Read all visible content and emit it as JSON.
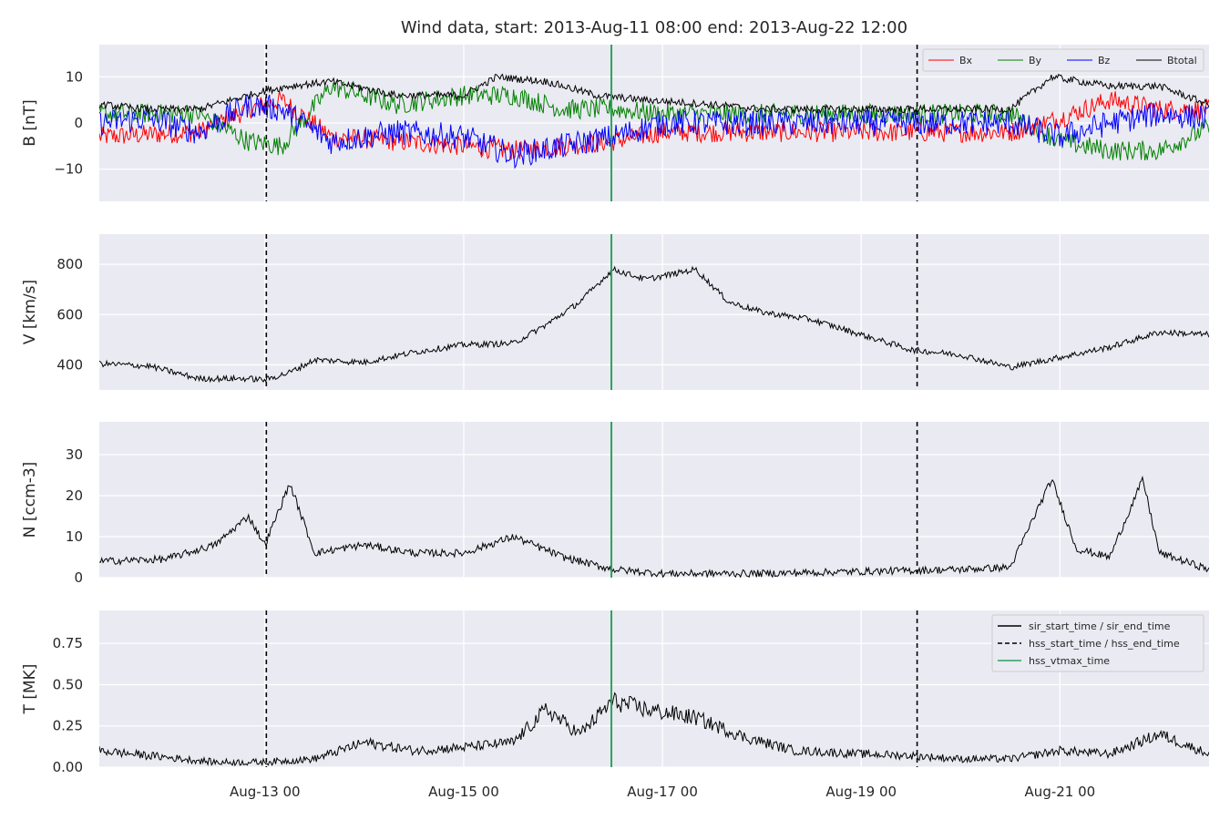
{
  "figure": {
    "title": "Wind data, start: 2013-Aug-11 08:00  end: 2013-Aug-22 12:00",
    "xlim": [
      "2013-08-11T08:00",
      "2013-08-22T12:00"
    ],
    "x_ticks": [
      {
        "t": "2013-08-13T00:00",
        "label": "Aug-13 00"
      },
      {
        "t": "2013-08-15T00:00",
        "label": "Aug-15 00"
      },
      {
        "t": "2013-08-17T00:00",
        "label": "Aug-17 00"
      },
      {
        "t": "2013-08-19T00:00",
        "label": "Aug-19 00"
      },
      {
        "t": "2013-08-21T00:00",
        "label": "Aug-21 00"
      }
    ],
    "event_lines": [
      {
        "time": "2013-08-13T00:20",
        "kind": "hss_start_time / hss_end_time",
        "style": "dashed",
        "color": "#000000"
      },
      {
        "time": "2013-08-16T11:40",
        "kind": "hss_vtmax_time",
        "style": "solid",
        "color": "#2ca25f"
      },
      {
        "time": "2013-08-19T13:30",
        "kind": "hss_start_time / hss_end_time",
        "style": "dashed",
        "color": "#000000"
      }
    ],
    "legend_events": {
      "placement": "upper right of bottom panel",
      "items": [
        {
          "label": "sir_start_time / sir_end_time",
          "style": "solid",
          "color": "#000000"
        },
        {
          "label": "hss_start_time / hss_end_time",
          "style": "dashed",
          "color": "#000000"
        },
        {
          "label": "hss_vtmax_time",
          "style": "solid",
          "color": "#2ca25f"
        }
      ]
    },
    "colors": {
      "panel_bg": "#eaeaf2",
      "grid": "#ffffff",
      "Bx": "#ff0000",
      "By": "#008000",
      "Bz": "#0000ff",
      "Btotal": "#000000"
    }
  },
  "chart_data": [
    {
      "type": "line",
      "ylabel": "B [nT]",
      "ylim": [
        -17,
        17
      ],
      "yticks": [
        -10,
        0,
        10
      ],
      "ytick_labels": [
        "−10",
        "0",
        "10"
      ],
      "grid": true,
      "legend": {
        "placement": "top-right",
        "columns": 4
      },
      "series": [
        {
          "name": "Bx",
          "color": "#ff0000",
          "x": [
            "2013-08-11T08:00",
            "2013-08-11T20:00",
            "2013-08-12T08:00",
            "2013-08-12T20:00",
            "2013-08-13T04:00",
            "2013-08-13T16:00",
            "2013-08-14T08:00",
            "2013-08-15T00:00",
            "2013-08-15T12:00",
            "2013-08-16T00:00",
            "2013-08-16T12:00",
            "2013-08-17T00:00",
            "2013-08-18T00:00",
            "2013-08-19T00:00",
            "2013-08-19T12:00",
            "2013-08-20T00:00",
            "2013-08-20T12:00",
            "2013-08-21T00:00",
            "2013-08-21T12:00",
            "2013-08-22T00:00",
            "2013-08-22T12:00"
          ],
          "y": [
            -3,
            -2.5,
            -2,
            3,
            5,
            -3,
            -4,
            -5,
            -6,
            -5,
            -4,
            -2,
            -2,
            -2,
            -2,
            -2,
            -2,
            1,
            5,
            3,
            3
          ]
        },
        {
          "name": "By",
          "color": "#008000",
          "x": [
            "2013-08-11T08:00",
            "2013-08-11T20:00",
            "2013-08-12T08:00",
            "2013-08-12T20:00",
            "2013-08-13T04:00",
            "2013-08-13T16:00",
            "2013-08-14T08:00",
            "2013-08-15T00:00",
            "2013-08-15T12:00",
            "2013-08-16T00:00",
            "2013-08-16T12:00",
            "2013-08-17T00:00",
            "2013-08-18T00:00",
            "2013-08-19T00:00",
            "2013-08-19T12:00",
            "2013-08-20T00:00",
            "2013-08-20T12:00",
            "2013-08-21T00:00",
            "2013-08-21T12:00",
            "2013-08-22T00:00",
            "2013-08-22T12:00"
          ],
          "y": [
            2,
            2,
            2,
            -4,
            -5,
            8,
            4,
            6,
            6,
            3,
            3,
            2,
            2,
            2,
            2,
            2,
            2,
            -4,
            -6,
            -6,
            -1
          ]
        },
        {
          "name": "Bz",
          "color": "#0000ff",
          "x": [
            "2013-08-11T08:00",
            "2013-08-11T20:00",
            "2013-08-12T08:00",
            "2013-08-12T20:00",
            "2013-08-13T04:00",
            "2013-08-13T16:00",
            "2013-08-14T08:00",
            "2013-08-15T00:00",
            "2013-08-15T12:00",
            "2013-08-16T00:00",
            "2013-08-16T12:00",
            "2013-08-17T00:00",
            "2013-08-18T00:00",
            "2013-08-19T00:00",
            "2013-08-19T12:00",
            "2013-08-20T00:00",
            "2013-08-20T12:00",
            "2013-08-21T00:00",
            "2013-08-21T12:00",
            "2013-08-22T00:00",
            "2013-08-22T12:00"
          ],
          "y": [
            0,
            1,
            -2,
            4,
            3,
            -4,
            -2,
            -3,
            -7,
            -5,
            -3,
            0,
            0,
            0,
            0,
            0,
            0,
            -3,
            0,
            2,
            1
          ]
        },
        {
          "name": "Btotal",
          "color": "#000000",
          "x": [
            "2013-08-11T08:00",
            "2013-08-11T20:00",
            "2013-08-12T08:00",
            "2013-08-12T20:00",
            "2013-08-13T00:00",
            "2013-08-13T06:00",
            "2013-08-13T16:00",
            "2013-08-14T08:00",
            "2013-08-15T00:00",
            "2013-08-15T08:00",
            "2013-08-15T20:00",
            "2013-08-16T08:00",
            "2013-08-16T20:00",
            "2013-08-17T12:00",
            "2013-08-18T00:00",
            "2013-08-19T00:00",
            "2013-08-19T12:00",
            "2013-08-20T00:00",
            "2013-08-20T12:00",
            "2013-08-20T22:00",
            "2013-08-21T12:00",
            "2013-08-22T00:00",
            "2013-08-22T12:00"
          ],
          "y": [
            4,
            3,
            3,
            6,
            7,
            8,
            9,
            6,
            6,
            10,
            9,
            6,
            5,
            4,
            3,
            3,
            3,
            3,
            3,
            10,
            8,
            8,
            4
          ]
        }
      ]
    },
    {
      "type": "line",
      "ylabel": "V [km/s]",
      "ylim": [
        300,
        920
      ],
      "yticks": [
        400,
        600,
        800
      ],
      "grid": true,
      "series": [
        {
          "name": "",
          "color": "#000000",
          "x": [
            "2013-08-11T08:00",
            "2013-08-11T20:00",
            "2013-08-12T08:00",
            "2013-08-12T20:00",
            "2013-08-13T00:00",
            "2013-08-13T06:00",
            "2013-08-13T12:00",
            "2013-08-14T00:00",
            "2013-08-14T12:00",
            "2013-08-15T00:00",
            "2013-08-15T12:00",
            "2013-08-15T20:00",
            "2013-08-16T04:00",
            "2013-08-16T12:00",
            "2013-08-16T20:00",
            "2013-08-17T08:00",
            "2013-08-17T16:00",
            "2013-08-18T00:00",
            "2013-08-18T12:00",
            "2013-08-19T00:00",
            "2013-08-19T12:00",
            "2013-08-20T00:00",
            "2013-08-20T12:00",
            "2013-08-21T00:00",
            "2013-08-21T12:00",
            "2013-08-22T00:00",
            "2013-08-22T12:00"
          ],
          "y": [
            405,
            395,
            345,
            345,
            340,
            370,
            420,
            410,
            450,
            480,
            485,
            560,
            650,
            780,
            740,
            780,
            650,
            610,
            580,
            520,
            460,
            440,
            390,
            430,
            470,
            530,
            520
          ]
        }
      ]
    },
    {
      "type": "line",
      "ylabel": "N [ccm-3]",
      "ylim": [
        0,
        38
      ],
      "yticks": [
        0,
        10,
        20,
        30
      ],
      "grid": true,
      "series": [
        {
          "name": "",
          "color": "#000000",
          "x": [
            "2013-08-11T08:00",
            "2013-08-12T00:00",
            "2013-08-12T12:00",
            "2013-08-12T20:00",
            "2013-08-13T00:00",
            "2013-08-13T06:00",
            "2013-08-13T12:00",
            "2013-08-14T00:00",
            "2013-08-14T12:00",
            "2013-08-15T00:00",
            "2013-08-15T12:00",
            "2013-08-16T00:00",
            "2013-08-16T12:00",
            "2013-08-17T00:00",
            "2013-08-18T00:00",
            "2013-08-19T00:00",
            "2013-08-20T00:00",
            "2013-08-20T12:00",
            "2013-08-20T22:00",
            "2013-08-21T04:00",
            "2013-08-21T12:00",
            "2013-08-21T20:00",
            "2013-08-22T00:00",
            "2013-08-22T12:00"
          ],
          "y": [
            4,
            4.5,
            8,
            15,
            8,
            23,
            6,
            8,
            6,
            6,
            10,
            5,
            2,
            1,
            1,
            1.5,
            2,
            2.5,
            24,
            7,
            5,
            24,
            6,
            2
          ]
        }
      ]
    },
    {
      "type": "line",
      "ylabel": "T [MK]",
      "ylim": [
        0,
        0.95
      ],
      "yticks": [
        0.0,
        0.25,
        0.5,
        0.75
      ],
      "ytick_labels": [
        "0.00",
        "0.25",
        "0.50",
        "0.75"
      ],
      "grid": true,
      "series": [
        {
          "name": "",
          "color": "#000000",
          "x": [
            "2013-08-11T08:00",
            "2013-08-12T00:00",
            "2013-08-12T12:00",
            "2013-08-13T00:00",
            "2013-08-13T12:00",
            "2013-08-14T00:00",
            "2013-08-14T12:00",
            "2013-08-15T00:00",
            "2013-08-15T12:00",
            "2013-08-15T20:00",
            "2013-08-16T04:00",
            "2013-08-16T12:00",
            "2013-08-16T20:00",
            "2013-08-17T08:00",
            "2013-08-17T20:00",
            "2013-08-18T08:00",
            "2013-08-19T00:00",
            "2013-08-19T12:00",
            "2013-08-20T00:00",
            "2013-08-20T12:00",
            "2013-08-21T00:00",
            "2013-08-21T12:00",
            "2013-08-22T00:00",
            "2013-08-22T12:00"
          ],
          "y": [
            0.1,
            0.06,
            0.03,
            0.03,
            0.05,
            0.15,
            0.1,
            0.12,
            0.15,
            0.35,
            0.2,
            0.4,
            0.35,
            0.3,
            0.18,
            0.1,
            0.08,
            0.07,
            0.05,
            0.05,
            0.1,
            0.08,
            0.2,
            0.08
          ]
        }
      ]
    }
  ]
}
